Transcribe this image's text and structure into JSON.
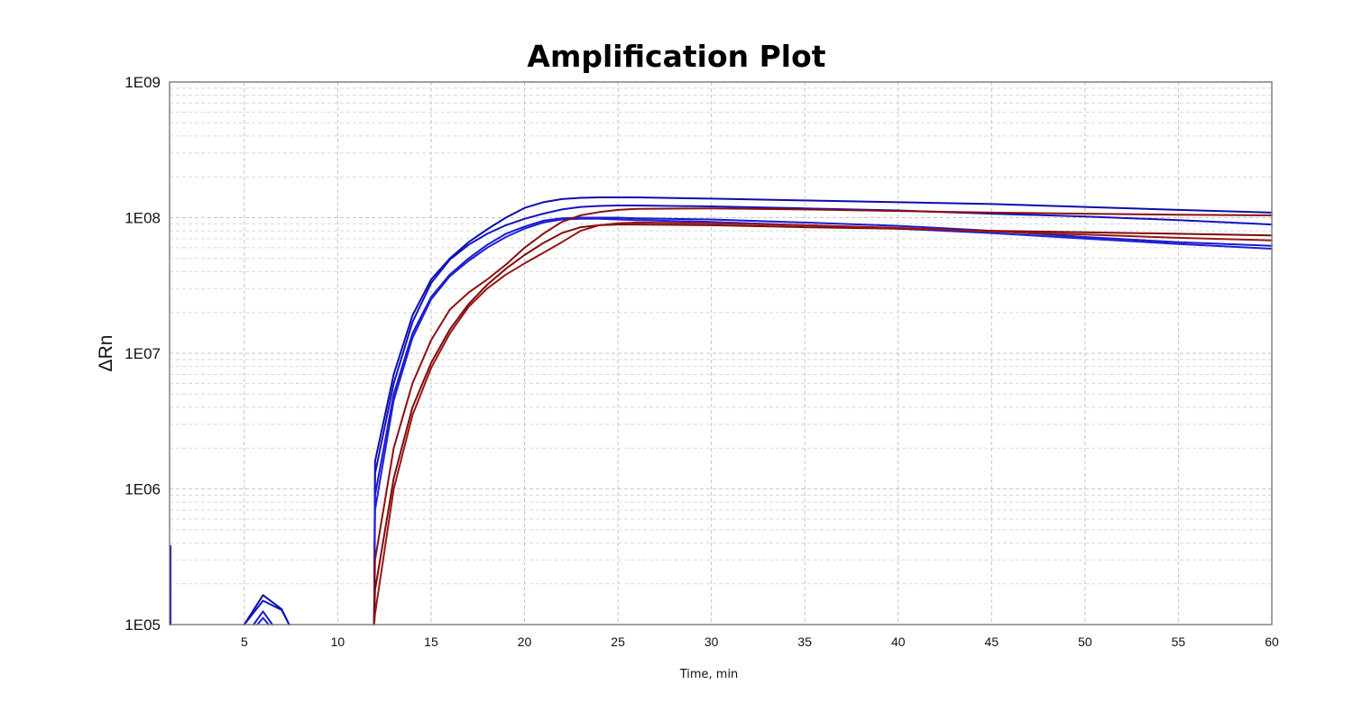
{
  "chart_data": {
    "type": "line",
    "title": "Amplification Plot",
    "xlabel": "Time, min",
    "ylabel": "ΔRn",
    "xlim": [
      1,
      60
    ],
    "ylim": [
      100000,
      1000000000
    ],
    "yscale": "log",
    "grid": true,
    "x_ticks": [
      5,
      10,
      15,
      20,
      25,
      30,
      35,
      40,
      45,
      50,
      55,
      60
    ],
    "x_tick_labels": [
      "5",
      "10",
      "15",
      "20",
      "25",
      "30",
      "35",
      "40",
      "45",
      "50",
      "55",
      "60"
    ],
    "y_ticks": [
      100000,
      1000000,
      10000000,
      100000000,
      1000000000
    ],
    "y_tick_labels": [
      "1E05",
      "1E06",
      "1E07",
      "1E08",
      "1E09"
    ],
    "series_colors": {
      "blue": "#1010b8",
      "red": "#8b0e0e"
    },
    "x": [
      12,
      13,
      14,
      15,
      16,
      17,
      18,
      19,
      20,
      21,
      22,
      23,
      24,
      25,
      26,
      30,
      35,
      40,
      45,
      50,
      55,
      60
    ],
    "series": [
      {
        "color": "#0d0da8",
        "pre": [
          [
            5,
            100000
          ],
          [
            6,
            165000
          ],
          [
            7,
            130000
          ],
          [
            7.4,
            100000
          ]
        ],
        "values": [
          1600000,
          7000000,
          19000000,
          35000000,
          50000000,
          66000000,
          82000000,
          100000000,
          118000000,
          130000000,
          137000000,
          140000000,
          141000000,
          141000000,
          141000000,
          138000000,
          134000000,
          130000000,
          126000000,
          120000000,
          114000000,
          109000000
        ]
      },
      {
        "color": "#1212c0",
        "pre": [
          [
            5,
            100000
          ],
          [
            6,
            150000
          ],
          [
            7,
            128000
          ],
          [
            7.4,
            100000
          ]
        ],
        "values": [
          1300000,
          6000000,
          17000000,
          33000000,
          49000000,
          63000000,
          76000000,
          88000000,
          98000000,
          107000000,
          115000000,
          120000000,
          122000000,
          123000000,
          123000000,
          121000000,
          117000000,
          113000000,
          107000000,
          102000000,
          96000000,
          89000000
        ]
      },
      {
        "color": "#1a1ad0",
        "pre": [
          [
            5.5,
            100000
          ],
          [
            6,
            125000
          ],
          [
            6.5,
            100000
          ]
        ],
        "values": [
          900000,
          5000000,
          14000000,
          26000000,
          38000000,
          50000000,
          63000000,
          76000000,
          86000000,
          95000000,
          99000000,
          100000000,
          100000000,
          100000000,
          99000000,
          97000000,
          92000000,
          87000000,
          80000000,
          72000000,
          66000000,
          62000000
        ]
      },
      {
        "color": "#2020d8",
        "pre": [
          [
            5.7,
            100000
          ],
          [
            6,
            112000
          ],
          [
            6.3,
            100000
          ]
        ],
        "values": [
          700000,
          4500000,
          13000000,
          25000000,
          37000000,
          48000000,
          60000000,
          72000000,
          83000000,
          92000000,
          97000000,
          98000000,
          98000000,
          97000000,
          96000000,
          93000000,
          88000000,
          83000000,
          77000000,
          70000000,
          64000000,
          59000000
        ]
      },
      {
        "color": "#8b1010",
        "pre": [],
        "values": [
          300000,
          2000000,
          6000000,
          12500000,
          21000000,
          28000000,
          35000000,
          45000000,
          60000000,
          76000000,
          93000000,
          104000000,
          110000000,
          114000000,
          116000000,
          117000000,
          115000000,
          112000000,
          109000000,
          107000000,
          105000000,
          104000000
        ]
      },
      {
        "color": "#7a0c0c",
        "pre": [],
        "values": [
          180000,
          1200000,
          4000000,
          8500000,
          15000000,
          23000000,
          32000000,
          42000000,
          53000000,
          65000000,
          77000000,
          85000000,
          88000000,
          89000000,
          89000000,
          88000000,
          85000000,
          83000000,
          80000000,
          78000000,
          76000000,
          74000000
        ]
      },
      {
        "color": "#9a1414",
        "pre": [],
        "values": [
          120000,
          1000000,
          3500000,
          7800000,
          14000000,
          22000000,
          30000000,
          38000000,
          46000000,
          55000000,
          66000000,
          80000000,
          88000000,
          91000000,
          92000000,
          91000000,
          88000000,
          84000000,
          79000000,
          75000000,
          71000000,
          68000000
        ]
      }
    ]
  }
}
